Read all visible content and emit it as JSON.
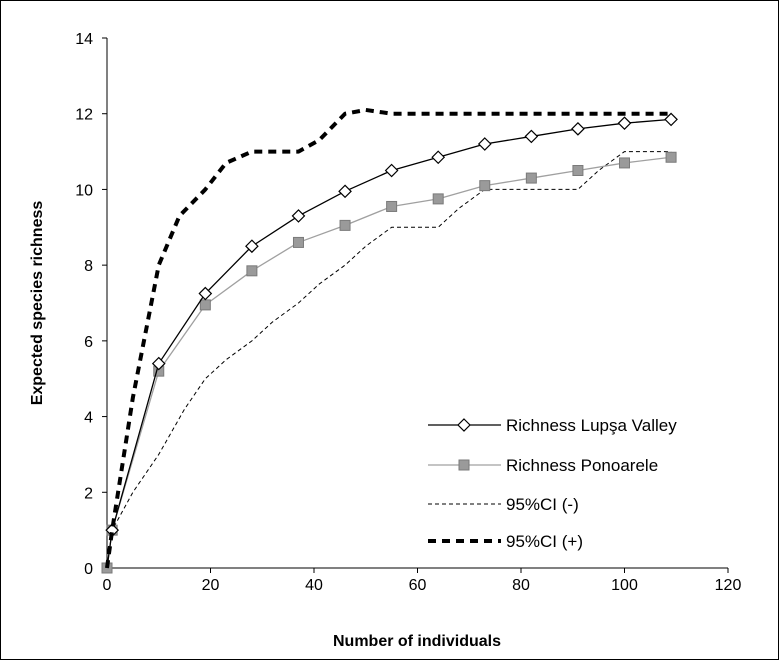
{
  "chart_data": {
    "type": "line",
    "xlabel": "Number of individuals",
    "ylabel": "Expected species richness",
    "xlim": [
      0,
      120
    ],
    "ylim": [
      0,
      14
    ],
    "xticks": [
      0,
      20,
      40,
      60,
      80,
      100,
      120
    ],
    "yticks": [
      0,
      2,
      4,
      6,
      8,
      10,
      12,
      14
    ],
    "grid": false,
    "legend_position": "bottom-right",
    "series": [
      {
        "name": "Richness Lupşa Valley",
        "style": "solid-dark-diamond",
        "color": "#000000",
        "x": [
          0,
          1,
          10,
          19,
          28,
          37,
          46,
          55,
          64,
          73,
          82,
          91,
          100,
          109
        ],
        "y": [
          0,
          1.0,
          5.4,
          7.25,
          8.5,
          9.3,
          9.95,
          10.5,
          10.85,
          11.2,
          11.4,
          11.6,
          11.75,
          11.85
        ]
      },
      {
        "name": "Richness Ponoarele",
        "style": "solid-grey-square",
        "color": "#999999",
        "x": [
          0,
          1,
          10,
          19,
          28,
          37,
          46,
          55,
          64,
          73,
          82,
          91,
          100,
          109
        ],
        "y": [
          0,
          1.0,
          5.2,
          6.95,
          7.85,
          8.6,
          9.05,
          9.55,
          9.75,
          10.1,
          10.3,
          10.5,
          10.7,
          10.85
        ]
      },
      {
        "name": "95%CI (-)",
        "style": "thin-dashed",
        "color": "#000000",
        "x": [
          0,
          1,
          5,
          10,
          15,
          19,
          23,
          28,
          32,
          37,
          41,
          46,
          50,
          55,
          59,
          64,
          68,
          73,
          77,
          82,
          86,
          91,
          95,
          100,
          104,
          109
        ],
        "y": [
          0,
          1.0,
          2.0,
          3.0,
          4.2,
          5.0,
          5.5,
          6.0,
          6.5,
          7.0,
          7.5,
          8.0,
          8.5,
          9.0,
          9.0,
          9.0,
          9.5,
          10.0,
          10.0,
          10.0,
          10.0,
          10.0,
          10.5,
          11.0,
          11.0,
          11.0
        ]
      },
      {
        "name": "95%CI (+)",
        "style": "thick-dashed",
        "color": "#000000",
        "x": [
          0,
          1,
          5,
          10,
          14,
          19,
          23,
          28,
          32,
          37,
          41,
          46,
          50,
          55,
          64,
          73,
          82,
          91,
          100,
          109
        ],
        "y": [
          0,
          1.0,
          4.5,
          8.0,
          9.3,
          10.0,
          10.7,
          11.0,
          11.0,
          11.0,
          11.3,
          12.0,
          12.1,
          12.0,
          12.0,
          12.0,
          12.0,
          12.0,
          12.0,
          12.0
        ]
      }
    ]
  }
}
